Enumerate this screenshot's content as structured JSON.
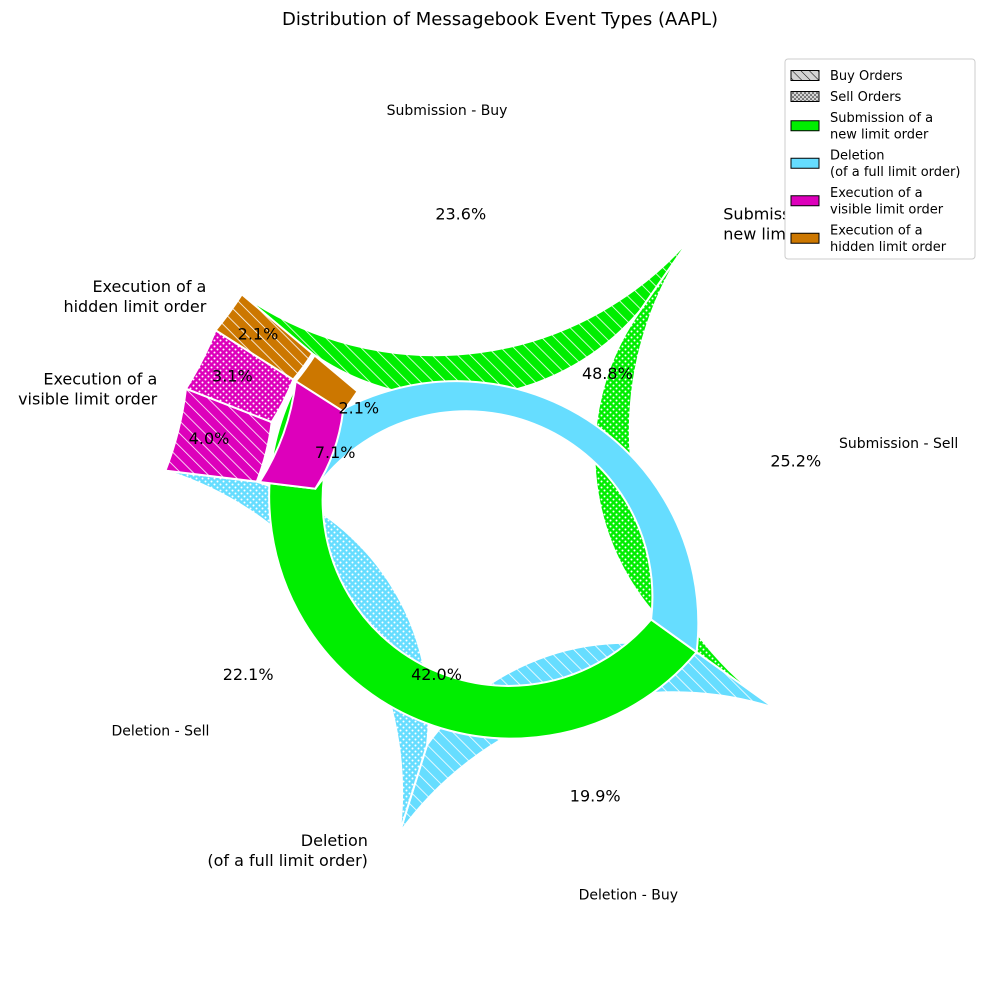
{
  "chart_data": {
    "type": "nested-donut",
    "title": "Distribution of Messagebook Event Types (AAPL)",
    "inner_ring": {
      "categories": [
        "Submission of a\nnew limit order",
        "Deletion\n(of a full limit order)",
        "Execution of a\nvisible limit order",
        "Execution of a\nhidden limit order"
      ],
      "values": [
        48.8,
        42.0,
        7.1,
        2.1
      ],
      "labels": [
        "48.8%",
        "42.0%",
        "7.1%",
        "2.1%"
      ],
      "colors": [
        "#00ee00",
        "#66ddff",
        "#dd00bb",
        "#cc7700"
      ]
    },
    "outer_ring": {
      "categories": [
        "Submission - Buy",
        "Submission - Sell",
        "Deletion - Buy",
        "Deletion - Sell",
        "",
        "",
        "",
        ""
      ],
      "values": [
        23.6,
        25.2,
        19.9,
        22.1,
        4.0,
        3.1,
        2.1,
        0.0
      ],
      "labels": [
        "23.6%",
        "25.2%",
        "19.9%",
        "22.1%",
        "4.0%",
        "3.1%",
        "2.1%",
        ""
      ],
      "sides": [
        "buy",
        "sell",
        "buy",
        "sell",
        "buy",
        "sell",
        "buy",
        "sell"
      ]
    },
    "legend": {
      "placement": "top-right",
      "entries": [
        {
          "label": "Buy Orders",
          "pattern": "hatch",
          "color": "#d3d3d3"
        },
        {
          "label": "Sell Orders",
          "pattern": "dots",
          "color": "#d3d3d3"
        },
        {
          "label": "Submission of a\nnew limit order",
          "pattern": "solid",
          "color": "#00ee00"
        },
        {
          "label": "Deletion\n(of a full limit order)",
          "pattern": "solid",
          "color": "#66ddff"
        },
        {
          "label": "Execution of a\nvisible limit order",
          "pattern": "solid",
          "color": "#dd00bb"
        },
        {
          "label": "Execution of a\nhidden limit order",
          "pattern": "solid",
          "color": "#cc7700"
        }
      ]
    }
  }
}
